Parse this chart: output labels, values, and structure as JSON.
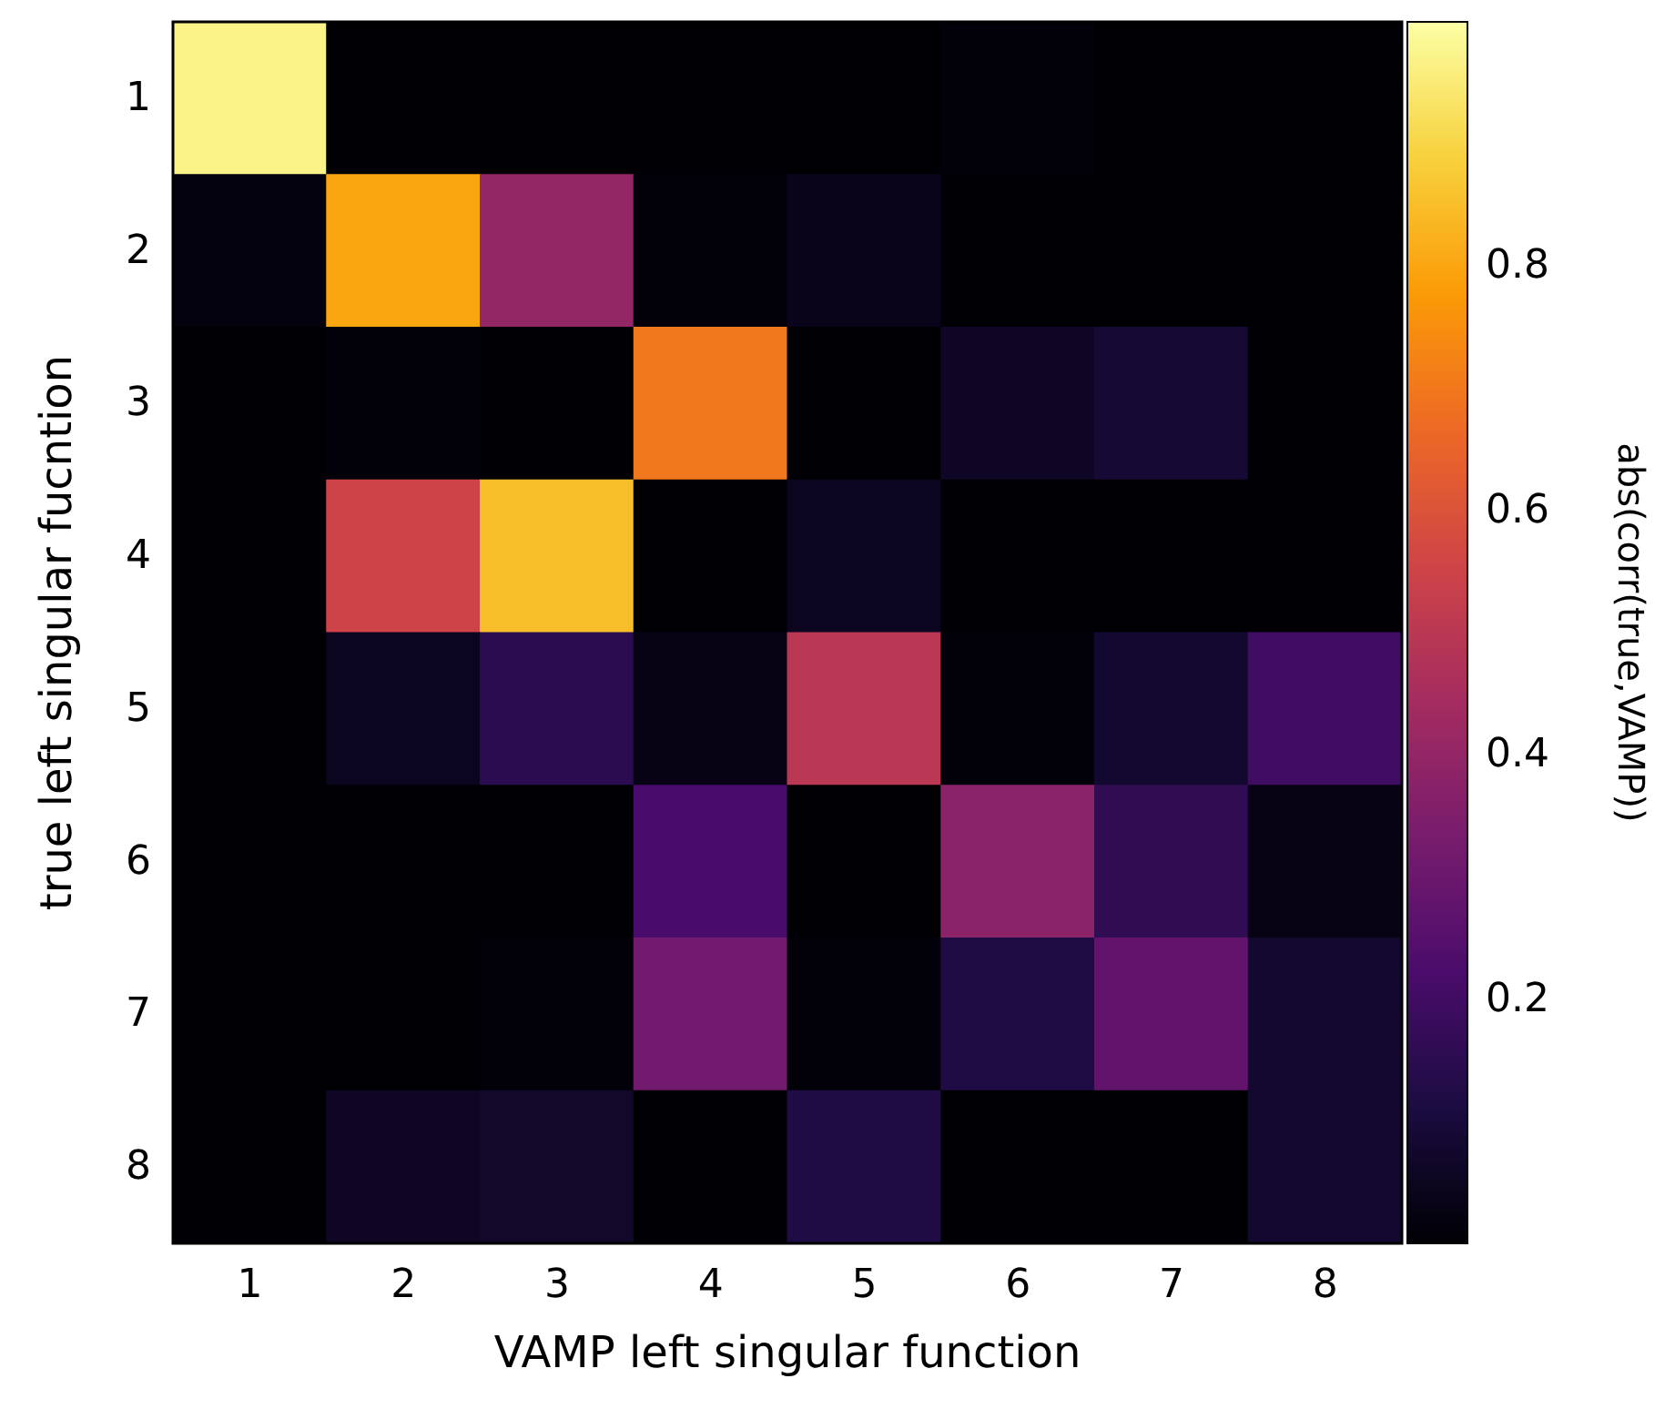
{
  "chart_data": {
    "type": "heatmap",
    "xlabel": "VAMP left singular function",
    "ylabel": "true left singular fucntion",
    "clabel": "abs(corr(true,VAMP))",
    "categories": [
      "1",
      "2",
      "3",
      "4",
      "5",
      "6",
      "7",
      "8"
    ],
    "y_categories": [
      "1",
      "2",
      "3",
      "4",
      "5",
      "6",
      "7",
      "8"
    ],
    "cells": [
      [
        0.97,
        0,
        0,
        0,
        0,
        0.01,
        0,
        0
      ],
      [
        0.02,
        0.8,
        0.4,
        0.01,
        0.04,
        0,
        0,
        0
      ],
      [
        0,
        0.01,
        0,
        0.7,
        0,
        0.06,
        0.09,
        0
      ],
      [
        0,
        0.55,
        0.85,
        0,
        0.05,
        0,
        0,
        0
      ],
      [
        0,
        0.05,
        0.15,
        0.03,
        0.5,
        0.01,
        0.08,
        0.2
      ],
      [
        0,
        0,
        0,
        0.22,
        0,
        0.38,
        0.16,
        0.03
      ],
      [
        0,
        0,
        0.01,
        0.32,
        0.01,
        0.12,
        0.28,
        0.08
      ],
      [
        0,
        0.06,
        0.07,
        0,
        0.12,
        0,
        0,
        0.08
      ]
    ],
    "clim": [
      0,
      1
    ],
    "cticks": [
      0.2,
      0.4,
      0.6,
      0.8
    ]
  }
}
